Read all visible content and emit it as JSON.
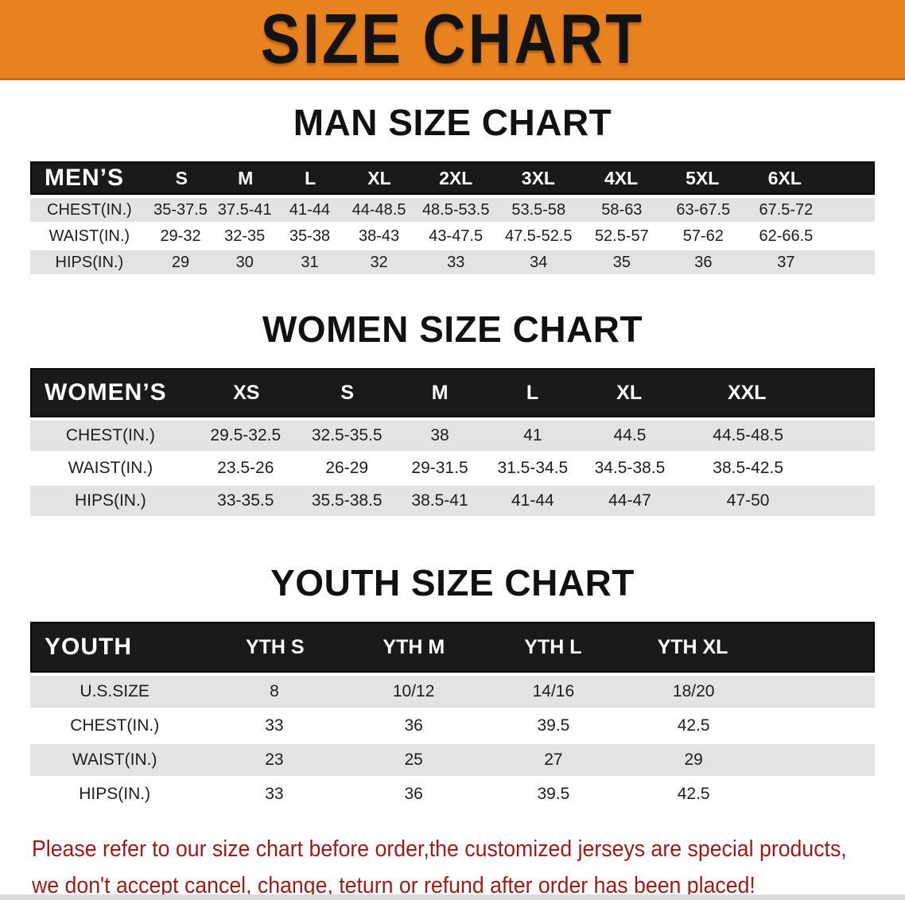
{
  "banner": {
    "title": "SIZE CHART",
    "bg_color": "#E8821E",
    "text_color": "#131313"
  },
  "sections": {
    "men": {
      "title": "MAN SIZE CHART",
      "table": {
        "header": [
          "MEN’S",
          "S",
          "M",
          "L",
          "XL",
          "2XL",
          "3XL",
          "4XL",
          "5XL",
          "6XL"
        ],
        "rows": [
          [
            "CHEST(IN.)",
            "35-37.5",
            "37.5-41",
            "41-44",
            "44-48.5",
            "48.5-53.5",
            "53.5-58",
            "58-63",
            "63-67.5",
            "67.5-72"
          ],
          [
            "WAIST(IN.)",
            "29-32",
            "32-35",
            "35-38",
            "38-43",
            "43-47.5",
            "47.5-52.5",
            "52.5-57",
            "57-62",
            "62-66.5"
          ],
          [
            "HIPS(IN.)",
            "29",
            "30",
            "31",
            "32",
            "33",
            "34",
            "35",
            "36",
            "37"
          ]
        ]
      }
    },
    "women": {
      "title": "WOMEN SIZE CHART",
      "table": {
        "header": [
          "WOMEN’S",
          "XS",
          "S",
          "M",
          "L",
          "XL",
          "XXL"
        ],
        "rows": [
          [
            "CHEST(IN.)",
            "29.5-32.5",
            "32.5-35.5",
            "38",
            "41",
            "44.5",
            "44.5-48.5"
          ],
          [
            "WAIST(IN.)",
            "23.5-26",
            "26-29",
            "29-31.5",
            "31.5-34.5",
            "34.5-38.5",
            "38.5-42.5"
          ],
          [
            "HIPS(IN.)",
            "33-35.5",
            "35.5-38.5",
            "38.5-41",
            "41-44",
            "44-47",
            "47-50"
          ]
        ]
      }
    },
    "youth": {
      "title": "YOUTH SIZE CHART",
      "table": {
        "header": [
          "YOUTH",
          "YTH S",
          "YTH M",
          "YTH L",
          "YTH XL"
        ],
        "rows": [
          [
            "U.S.SIZE",
            "8",
            "10/12",
            "14/16",
            "18/20"
          ],
          [
            "CHEST(IN.)",
            "33",
            "36",
            "39.5",
            "42.5"
          ],
          [
            "WAIST(IN.)",
            "23",
            "25",
            "27",
            "29"
          ],
          [
            "HIPS(IN.)",
            "33",
            "36",
            "39.5",
            "42.5"
          ]
        ]
      }
    }
  },
  "disclaimer": {
    "line1": "Please refer to our size chart before order,the customized jerseys are special products,",
    "line2": "we don't accept cancel, change, teturn or refund after order has been placed!",
    "color": "#9B1B1B"
  },
  "colors": {
    "header_bar": "#1A1A1A",
    "row_gray": "#E3E3E3",
    "row_white": "#FFFFFF"
  }
}
